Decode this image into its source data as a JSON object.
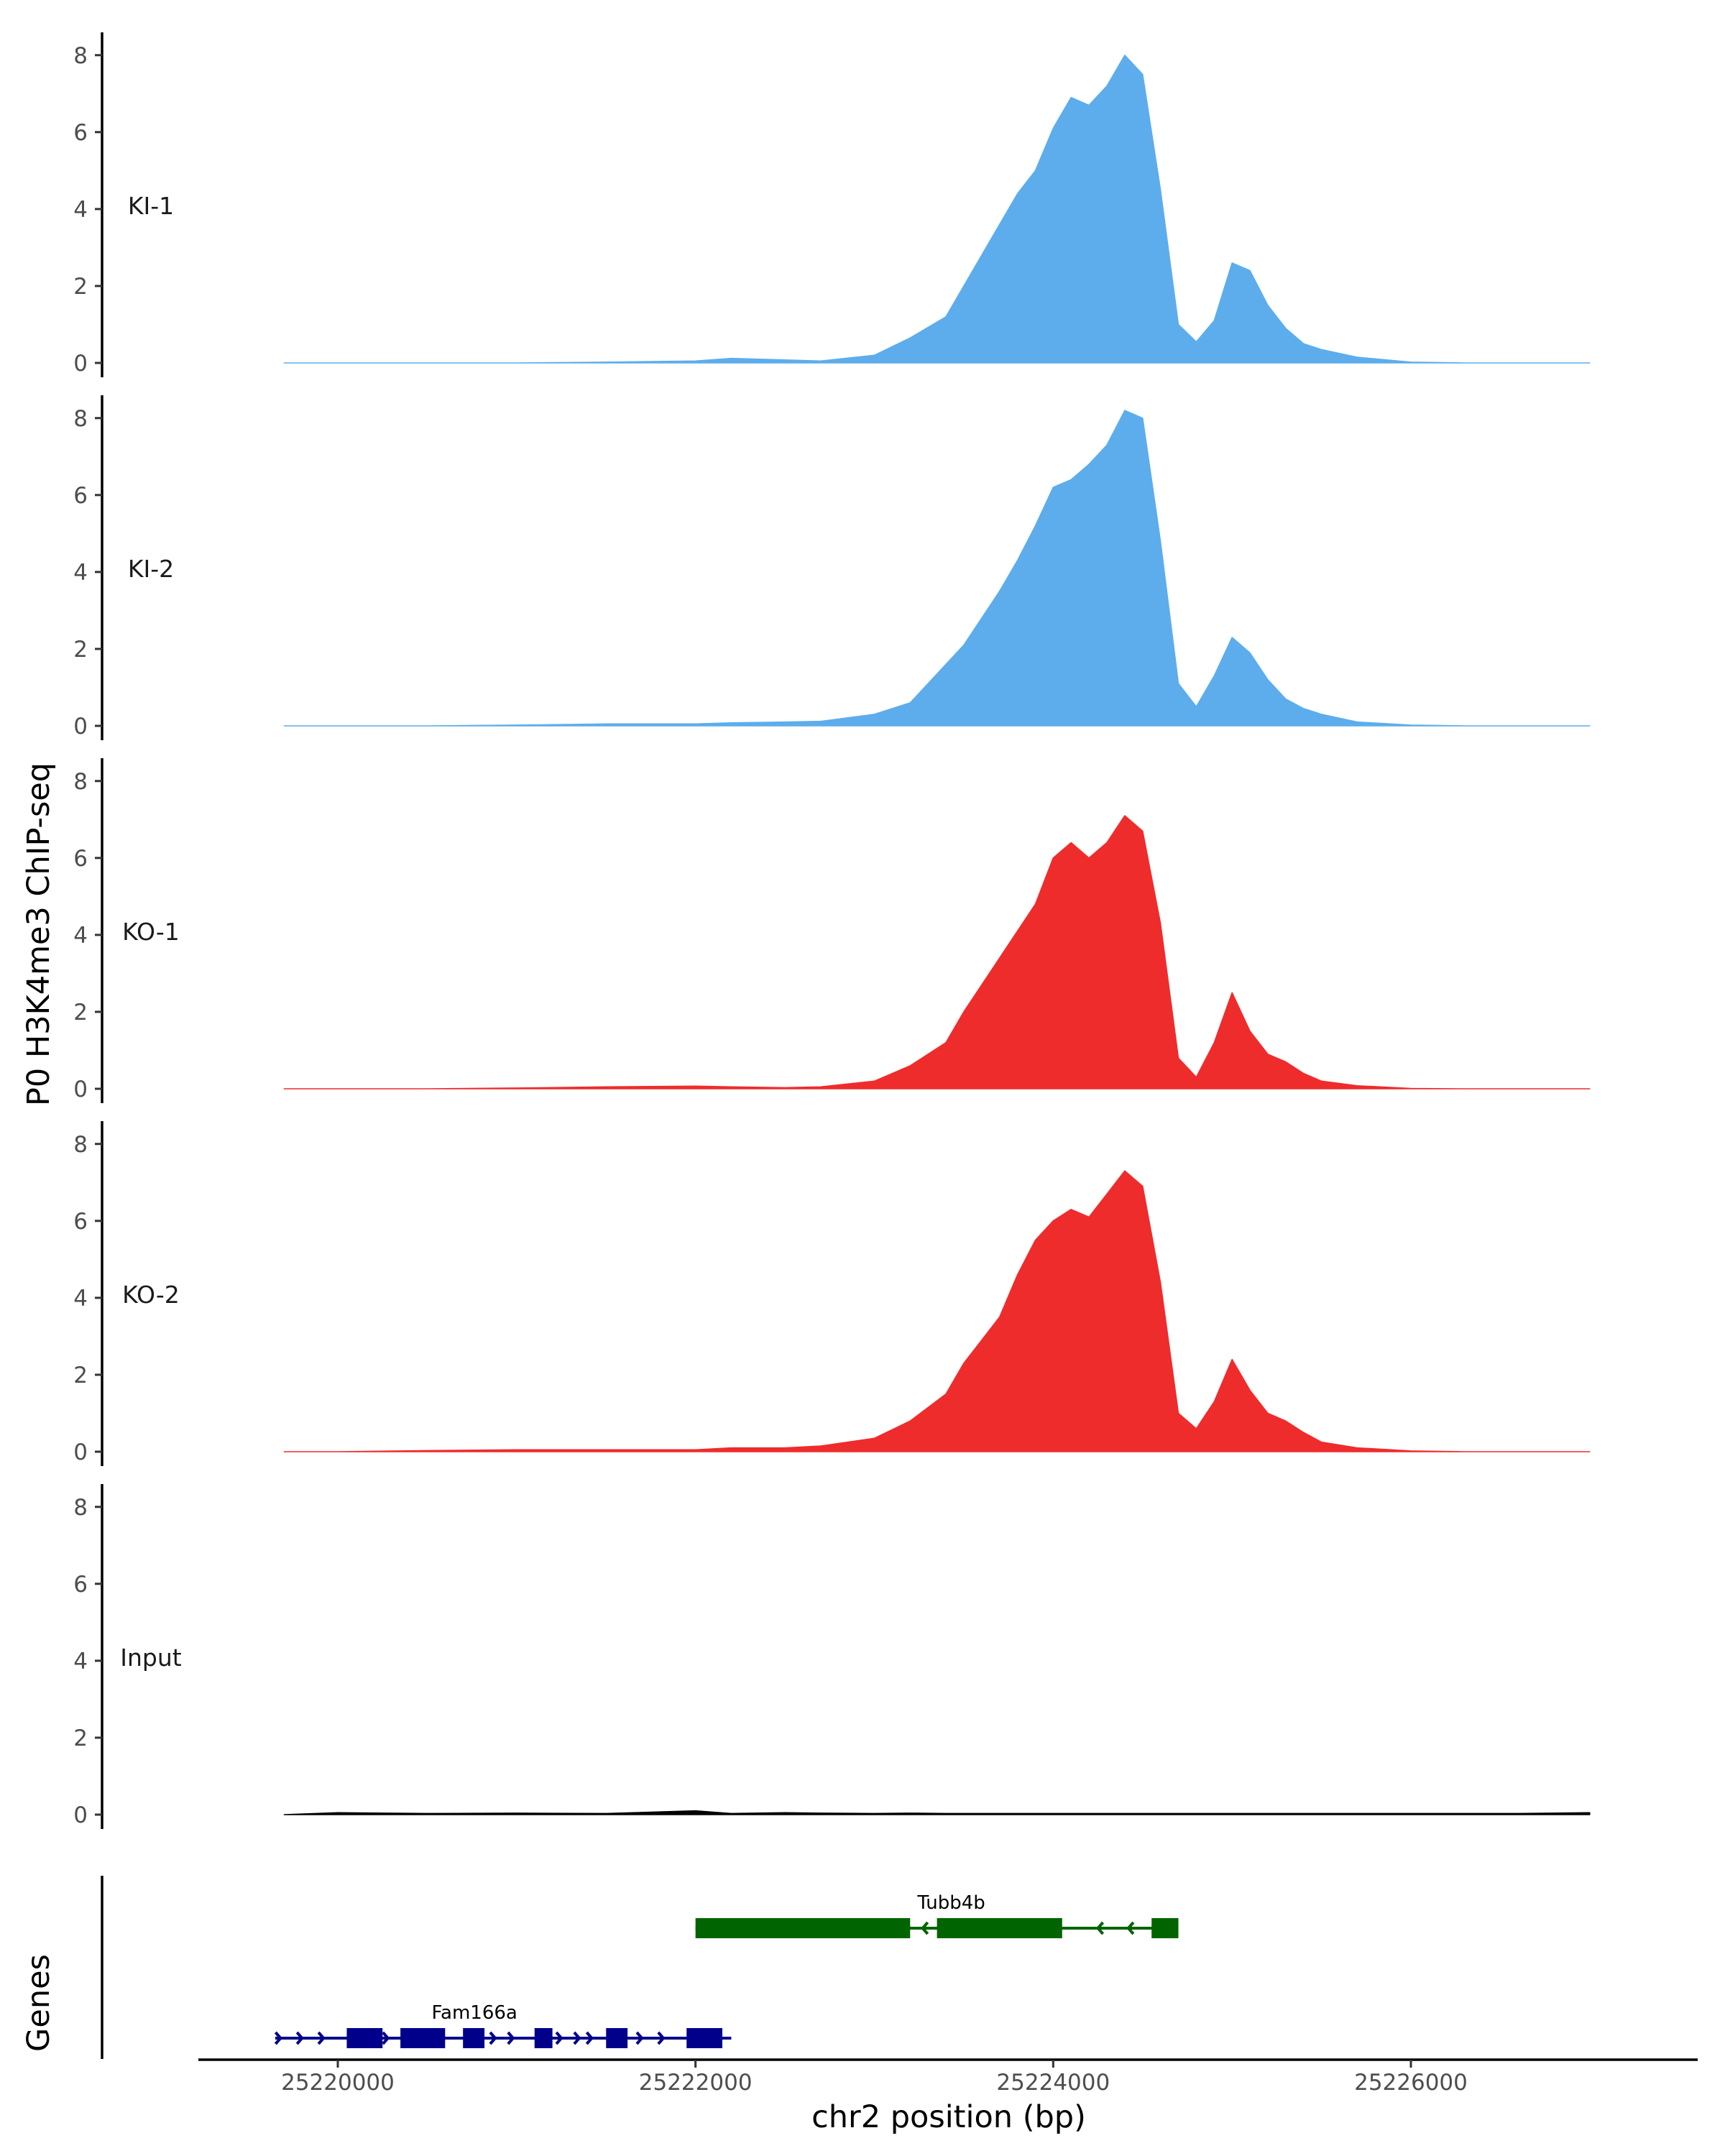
{
  "chart_data": {
    "type": "area",
    "ylabel": "P0 H3K4me3 ChIP-seq",
    "xlabel": "chr2 position (bp)",
    "genes_label": "Genes",
    "xlim": [
      25219300,
      25227300
    ],
    "ylim": [
      0,
      8.5
    ],
    "y_ticks": [
      0,
      2,
      4,
      6,
      8
    ],
    "y_tick_labels": [
      "0",
      "2",
      "4",
      "6",
      "8"
    ],
    "x_ticks": [
      25220000,
      25222000,
      25224000,
      25226000
    ],
    "x_tick_labels": [
      "25220000",
      "25222000",
      "25224000",
      "25226000"
    ],
    "grid": false,
    "colors": {
      "KI": "#5DADEC",
      "KO": "#EE2C2C",
      "Input": "#000000",
      "Tubb4b": "#006400",
      "Fam166a": "#00008B"
    },
    "x": [
      25219700,
      25220000,
      25220500,
      25221000,
      25221500,
      25222000,
      25222200,
      25222500,
      25222700,
      25223000,
      25223200,
      25223400,
      25223500,
      25223700,
      25223800,
      25223900,
      25224000,
      25224100,
      25224200,
      25224300,
      25224400,
      25224500,
      25224600,
      25224700,
      25224800,
      25224900,
      25225000,
      25225100,
      25225200,
      25225300,
      25225400,
      25225500,
      25225700,
      25226000,
      25226300,
      25226600,
      25227000
    ],
    "series": [
      {
        "name": "KI-1",
        "color": "#5DADEC",
        "values": [
          0,
          0,
          0,
          0,
          0.02,
          0.05,
          0.12,
          0.08,
          0.05,
          0.2,
          0.65,
          1.2,
          2.0,
          3.6,
          4.4,
          5.0,
          6.1,
          6.9,
          6.7,
          7.2,
          8.0,
          7.5,
          4.5,
          1.0,
          0.55,
          1.1,
          2.6,
          2.4,
          1.5,
          0.9,
          0.5,
          0.35,
          0.15,
          0.02,
          0,
          0,
          0
        ]
      },
      {
        "name": "KI-2",
        "color": "#5DADEC",
        "values": [
          0,
          0,
          0,
          0.02,
          0.05,
          0.05,
          0.08,
          0.1,
          0.12,
          0.3,
          0.6,
          1.6,
          2.1,
          3.5,
          4.3,
          5.2,
          6.2,
          6.4,
          6.8,
          7.3,
          8.2,
          8.0,
          4.8,
          1.1,
          0.5,
          1.3,
          2.3,
          1.9,
          1.2,
          0.7,
          0.45,
          0.3,
          0.1,
          0.02,
          0,
          0,
          0
        ]
      },
      {
        "name": "KO-1",
        "color": "#EE2C2C",
        "values": [
          0,
          0,
          0,
          0.02,
          0.05,
          0.07,
          0.05,
          0.03,
          0.05,
          0.2,
          0.6,
          1.2,
          2.0,
          3.4,
          4.1,
          4.8,
          6.0,
          6.4,
          6.0,
          6.4,
          7.1,
          6.7,
          4.3,
          0.8,
          0.3,
          1.2,
          2.5,
          1.5,
          0.9,
          0.7,
          0.4,
          0.2,
          0.08,
          0.01,
          0,
          0,
          0
        ]
      },
      {
        "name": "KO-2",
        "color": "#EE2C2C",
        "values": [
          0,
          0,
          0.03,
          0.05,
          0.05,
          0.05,
          0.1,
          0.1,
          0.15,
          0.35,
          0.8,
          1.5,
          2.3,
          3.5,
          4.6,
          5.5,
          6.0,
          6.3,
          6.1,
          6.7,
          7.3,
          6.9,
          4.4,
          1.0,
          0.6,
          1.3,
          2.4,
          1.6,
          1.0,
          0.8,
          0.5,
          0.25,
          0.1,
          0.02,
          0,
          0,
          0
        ]
      },
      {
        "name": "Input",
        "color": "#000000",
        "values": [
          0,
          0.05,
          0.03,
          0.04,
          0.03,
          0.1,
          0.03,
          0.05,
          0.04,
          0.03,
          0.04,
          0.03,
          0.03,
          0.03,
          0.03,
          0.03,
          0.03,
          0.03,
          0.03,
          0.03,
          0.03,
          0.03,
          0.03,
          0.03,
          0.03,
          0.03,
          0.03,
          0.03,
          0.03,
          0.03,
          0.03,
          0.03,
          0.03,
          0.03,
          0.03,
          0.03,
          0.05
        ]
      }
    ],
    "genes": [
      {
        "name": "Tubb4b",
        "strand": "-",
        "color": "#006400",
        "start": 25222000,
        "end": 25224700,
        "exons": [
          [
            25222000,
            25223200
          ],
          [
            25223350,
            25224050
          ],
          [
            25224550,
            25224700
          ]
        ],
        "arrows": [
          25223270,
          25224250,
          25224420
        ]
      },
      {
        "name": "Fam166a",
        "strand": "+",
        "color": "#00008B",
        "start": 25219650,
        "end": 25222200,
        "exons": [
          [
            25220050,
            25220250
          ],
          [
            25220350,
            25220600
          ],
          [
            25220700,
            25220820
          ],
          [
            25221100,
            25221200
          ],
          [
            25221500,
            25221620
          ],
          [
            25221950,
            25222150
          ]
        ],
        "arrows": [
          25219680,
          25219800,
          25219920,
          25220280,
          25220880,
          25220980,
          25221250,
          25221350,
          25221420,
          25221700,
          25221820
        ]
      }
    ]
  }
}
